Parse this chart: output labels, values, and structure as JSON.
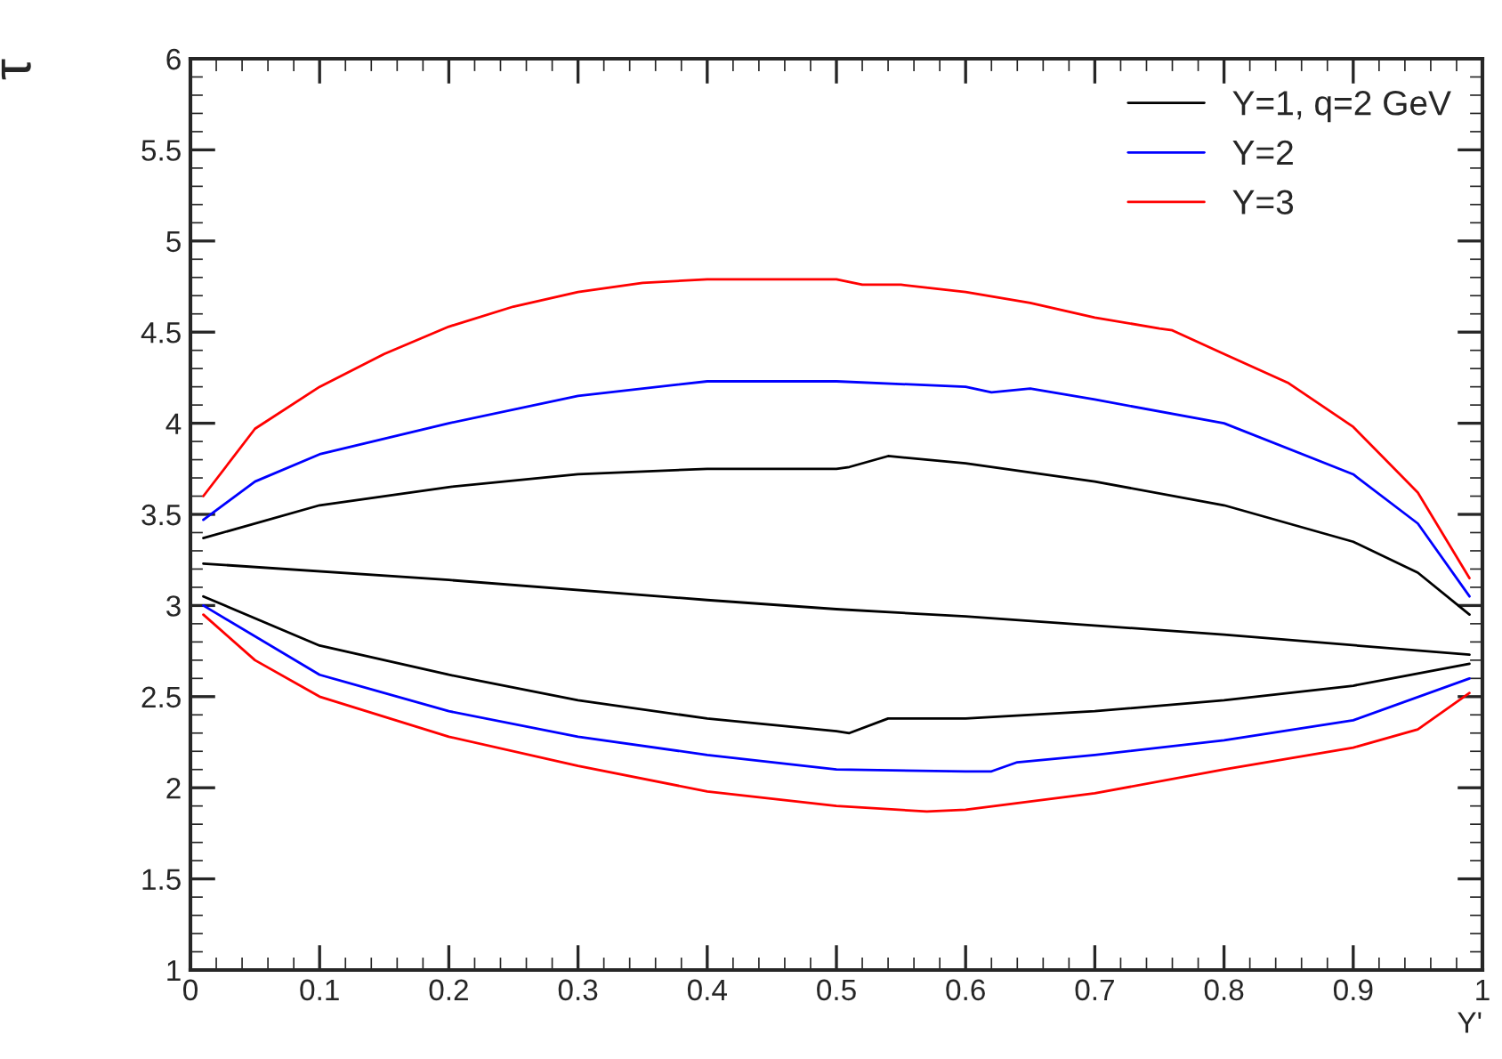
{
  "chart_data": {
    "type": "line",
    "xlabel": "Y'",
    "ylabel": "τ",
    "xlim": [
      0,
      1
    ],
    "ylim": [
      1,
      6
    ],
    "xticks": [
      0,
      0.1,
      0.2,
      0.3,
      0.4,
      0.5,
      0.6,
      0.7,
      0.8,
      0.9,
      1
    ],
    "yticks": [
      1,
      1.5,
      2,
      2.5,
      3,
      3.5,
      4,
      4.5,
      5,
      5.5,
      6
    ],
    "grid": false,
    "legend": "top right",
    "marker": "none",
    "line_style": "solid",
    "series": [
      {
        "name": "Y=1, q=2 GeV",
        "color": "#000000",
        "x": [
          0.01,
          0.1,
          0.2,
          0.3,
          0.4,
          0.5,
          0.51,
          0.54,
          0.6,
          0.7,
          0.8,
          0.9,
          0.95,
          0.99
        ],
        "values": [
          3.37,
          3.55,
          3.65,
          3.72,
          3.75,
          3.75,
          3.76,
          3.82,
          3.78,
          3.68,
          3.55,
          3.35,
          3.18,
          2.95
        ]
      },
      {
        "color": "#000000",
        "x": [
          0.01,
          0.2,
          0.4,
          0.5,
          0.6,
          0.8,
          0.99
        ],
        "values": [
          3.23,
          3.14,
          3.03,
          2.98,
          2.94,
          2.84,
          2.73
        ]
      },
      {
        "color": "#000000",
        "x": [
          0.01,
          0.1,
          0.2,
          0.3,
          0.4,
          0.5,
          0.51,
          0.54,
          0.6,
          0.7,
          0.8,
          0.9,
          0.99
        ],
        "values": [
          3.05,
          2.78,
          2.62,
          2.48,
          2.38,
          2.31,
          2.3,
          2.38,
          2.38,
          2.42,
          2.48,
          2.56,
          2.68
        ]
      },
      {
        "name": "Y=2",
        "color": "#0000ff",
        "x": [
          0.01,
          0.05,
          0.1,
          0.2,
          0.3,
          0.4,
          0.5,
          0.6,
          0.62,
          0.65,
          0.7,
          0.8,
          0.9,
          0.95,
          0.99
        ],
        "values": [
          3.47,
          3.68,
          3.83,
          4.0,
          4.15,
          4.23,
          4.23,
          4.2,
          4.17,
          4.19,
          4.13,
          4.0,
          3.72,
          3.45,
          3.05
        ]
      },
      {
        "color": "#0000ff",
        "x": [
          0.01,
          0.1,
          0.2,
          0.3,
          0.4,
          0.5,
          0.6,
          0.62,
          0.64,
          0.7,
          0.8,
          0.9,
          0.99
        ],
        "values": [
          3.0,
          2.62,
          2.42,
          2.28,
          2.18,
          2.1,
          2.09,
          2.09,
          2.14,
          2.18,
          2.26,
          2.37,
          2.6
        ]
      },
      {
        "name": "Y=3",
        "color": "#ff0000",
        "x": [
          0.01,
          0.05,
          0.1,
          0.15,
          0.2,
          0.25,
          0.3,
          0.35,
          0.4,
          0.45,
          0.5,
          0.52,
          0.55,
          0.6,
          0.65,
          0.7,
          0.75,
          0.76,
          0.8,
          0.85,
          0.9,
          0.95,
          0.99
        ],
        "values": [
          3.6,
          3.97,
          4.2,
          4.38,
          4.53,
          4.64,
          4.72,
          4.77,
          4.79,
          4.79,
          4.79,
          4.76,
          4.76,
          4.72,
          4.66,
          4.58,
          4.52,
          4.51,
          4.38,
          4.22,
          3.98,
          3.62,
          3.15
        ]
      },
      {
        "color": "#ff0000",
        "x": [
          0.01,
          0.05,
          0.1,
          0.2,
          0.3,
          0.4,
          0.5,
          0.57,
          0.6,
          0.7,
          0.8,
          0.9,
          0.95,
          0.99
        ],
        "values": [
          2.95,
          2.7,
          2.5,
          2.28,
          2.12,
          1.98,
          1.9,
          1.87,
          1.88,
          1.97,
          2.1,
          2.22,
          2.32,
          2.52
        ]
      }
    ]
  }
}
